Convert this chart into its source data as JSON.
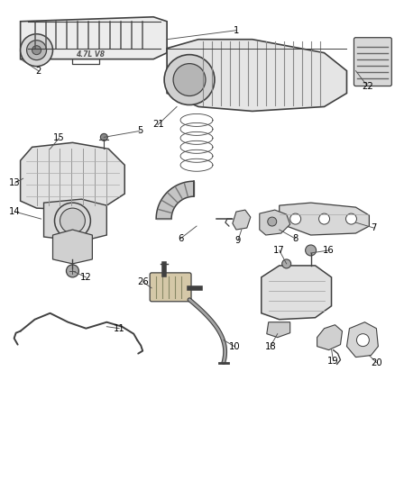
{
  "background_color": "#ffffff",
  "line_color": "#404040",
  "label_color": "#000000",
  "fig_w": 4.38,
  "fig_h": 5.33,
  "dpi": 100
}
